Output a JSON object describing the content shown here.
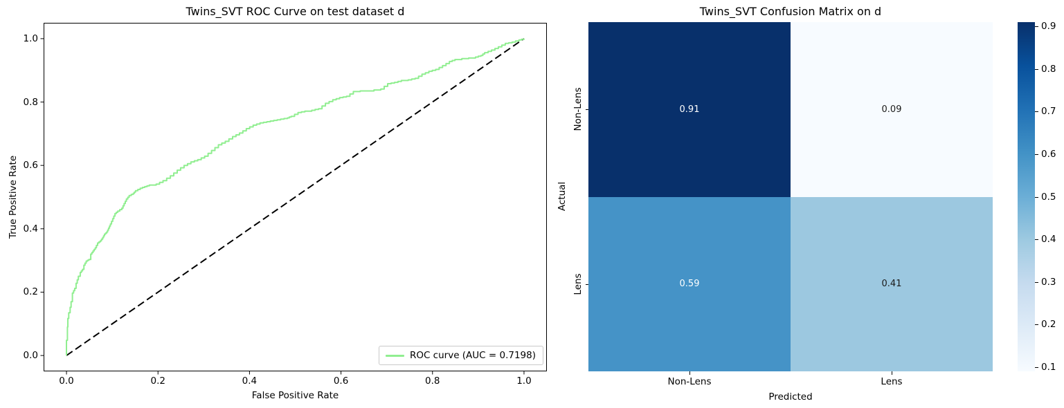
{
  "figure": {
    "background": "#ffffff"
  },
  "chart_data": [
    {
      "type": "line",
      "title": "Twins_SVT ROC Curve on test dataset d",
      "xlabel": "False Positive Rate",
      "ylabel": "True Positive Rate",
      "xlim": [
        -0.05,
        1.05
      ],
      "ylim": [
        -0.05,
        1.05
      ],
      "grid": false,
      "xticks": [
        0.0,
        0.2,
        0.4,
        0.6,
        0.8,
        1.0
      ],
      "yticks": [
        0.0,
        0.2,
        0.4,
        0.6,
        0.8,
        1.0
      ],
      "xtick_labels": [
        "0.0",
        "0.2",
        "0.4",
        "0.6",
        "0.8",
        "1.0"
      ],
      "ytick_labels": [
        "0.0",
        "0.2",
        "0.4",
        "0.6",
        "0.8",
        "1.0"
      ],
      "legend": {
        "position": "lower right",
        "entries": [
          {
            "label": "ROC curve (AUC = 0.7198)",
            "color": "#90ee90"
          }
        ]
      },
      "auc": 0.7198,
      "series": [
        {
          "name": "ROC curve",
          "color": "#90ee90",
          "line_style": "step",
          "line_width": 2,
          "points": [
            [
              0.0,
              0.0
            ],
            [
              0.0,
              0.048
            ],
            [
              0.002,
              0.09
            ],
            [
              0.003,
              0.117
            ],
            [
              0.005,
              0.135
            ],
            [
              0.008,
              0.152
            ],
            [
              0.01,
              0.17
            ],
            [
              0.013,
              0.197
            ],
            [
              0.018,
              0.212
            ],
            [
              0.021,
              0.228
            ],
            [
              0.026,
              0.25
            ],
            [
              0.03,
              0.262
            ],
            [
              0.035,
              0.272
            ],
            [
              0.038,
              0.285
            ],
            [
              0.043,
              0.298
            ],
            [
              0.049,
              0.303
            ],
            [
              0.053,
              0.32
            ],
            [
              0.058,
              0.33
            ],
            [
              0.063,
              0.34
            ],
            [
              0.068,
              0.355
            ],
            [
              0.074,
              0.362
            ],
            [
              0.079,
              0.372
            ],
            [
              0.083,
              0.383
            ],
            [
              0.088,
              0.39
            ],
            [
              0.092,
              0.402
            ],
            [
              0.096,
              0.415
            ],
            [
              0.101,
              0.432
            ],
            [
              0.106,
              0.448
            ],
            [
              0.112,
              0.456
            ],
            [
              0.121,
              0.465
            ],
            [
              0.126,
              0.48
            ],
            [
              0.131,
              0.494
            ],
            [
              0.137,
              0.505
            ],
            [
              0.146,
              0.512
            ],
            [
              0.151,
              0.52
            ],
            [
              0.161,
              0.528
            ],
            [
              0.171,
              0.533
            ],
            [
              0.181,
              0.538
            ],
            [
              0.196,
              0.541
            ],
            [
              0.211,
              0.552
            ],
            [
              0.227,
              0.567
            ],
            [
              0.242,
              0.585
            ],
            [
              0.257,
              0.6
            ],
            [
              0.272,
              0.611
            ],
            [
              0.287,
              0.618
            ],
            [
              0.302,
              0.629
            ],
            [
              0.317,
              0.647
            ],
            [
              0.332,
              0.665
            ],
            [
              0.347,
              0.676
            ],
            [
              0.363,
              0.691
            ],
            [
              0.378,
              0.702
            ],
            [
              0.393,
              0.716
            ],
            [
              0.408,
              0.727
            ],
            [
              0.423,
              0.734
            ],
            [
              0.438,
              0.738
            ],
            [
              0.453,
              0.742
            ],
            [
              0.468,
              0.746
            ],
            [
              0.483,
              0.75
            ],
            [
              0.491,
              0.755
            ],
            [
              0.506,
              0.767
            ],
            [
              0.521,
              0.771
            ],
            [
              0.536,
              0.774
            ],
            [
              0.551,
              0.779
            ],
            [
              0.566,
              0.796
            ],
            [
              0.582,
              0.807
            ],
            [
              0.597,
              0.814
            ],
            [
              0.612,
              0.818
            ],
            [
              0.627,
              0.833
            ],
            [
              0.642,
              0.835
            ],
            [
              0.672,
              0.838
            ],
            [
              0.687,
              0.841
            ],
            [
              0.702,
              0.858
            ],
            [
              0.717,
              0.862
            ],
            [
              0.732,
              0.868
            ],
            [
              0.747,
              0.87
            ],
            [
              0.762,
              0.875
            ],
            [
              0.777,
              0.888
            ],
            [
              0.792,
              0.897
            ],
            [
              0.807,
              0.903
            ],
            [
              0.822,
              0.915
            ],
            [
              0.837,
              0.928
            ],
            [
              0.849,
              0.934
            ],
            [
              0.864,
              0.937
            ],
            [
              0.879,
              0.939
            ],
            [
              0.894,
              0.942
            ],
            [
              0.906,
              0.947
            ],
            [
              0.914,
              0.956
            ],
            [
              0.929,
              0.964
            ],
            [
              0.944,
              0.974
            ],
            [
              0.959,
              0.985
            ],
            [
              0.974,
              0.989
            ],
            [
              0.989,
              0.996
            ],
            [
              1.0,
              1.0
            ]
          ]
        },
        {
          "name": "chance diagonal",
          "color": "#000000",
          "line_style": "dashed",
          "line_width": 2,
          "points": [
            [
              0.0,
              0.0
            ],
            [
              1.0,
              1.0
            ]
          ]
        }
      ]
    },
    {
      "type": "heatmap",
      "title": "Twins_SVT Confusion Matrix on d",
      "xlabel": "Predicted",
      "ylabel": "Actual",
      "x_categories": [
        "Non-Lens",
        "Lens"
      ],
      "y_categories": [
        "Non-Lens",
        "Lens"
      ],
      "rows": [
        [
          0.91,
          0.09
        ],
        [
          0.59,
          0.41
        ]
      ],
      "values_text": [
        [
          "0.91",
          "0.09"
        ],
        [
          "0.59",
          "0.41"
        ]
      ],
      "cell_colors": [
        [
          "#08306b",
          "#f7fbff"
        ],
        [
          "#4593c7",
          "#9cc8e0"
        ]
      ],
      "cell_text_colors": [
        [
          "#ffffff",
          "#1a1a1a"
        ],
        [
          "#ffffff",
          "#1a1a1a"
        ]
      ],
      "colorbar": {
        "vmin": 0.09,
        "vmax": 0.91,
        "ticks": [
          0.9,
          0.8,
          0.7,
          0.6,
          0.5,
          0.4,
          0.3,
          0.2,
          0.1
        ],
        "tick_labels": [
          "0.9",
          "0.8",
          "0.7",
          "0.6",
          "0.5",
          "0.4",
          "0.3",
          "0.2",
          "0.1"
        ],
        "colormap": "Blues",
        "gradient_stops": [
          "#f7fbff",
          "#deebf7",
          "#c6dbef",
          "#9ecae1",
          "#6baed6",
          "#4292c6",
          "#2171b5",
          "#08519c",
          "#08306b"
        ]
      }
    }
  ]
}
